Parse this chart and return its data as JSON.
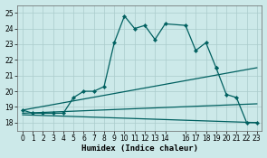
{
  "xlabel": "Humidex (Indice chaleur)",
  "xlim": [
    -0.5,
    23.5
  ],
  "ylim": [
    17.5,
    25.5
  ],
  "yticks": [
    18,
    19,
    20,
    21,
    22,
    23,
    24,
    25
  ],
  "xticks": [
    0,
    1,
    2,
    3,
    4,
    5,
    6,
    7,
    8,
    9,
    10,
    11,
    12,
    13,
    14,
    16,
    17,
    18,
    19,
    20,
    21,
    22,
    23
  ],
  "bg_color": "#cce9e9",
  "grid_color": "#aacccc",
  "line_color": "#006060",
  "lines": [
    {
      "x": [
        0,
        1,
        2,
        3,
        4,
        5,
        6,
        7,
        8,
        9,
        10,
        11,
        12,
        13,
        14,
        16,
        17,
        18,
        19
      ],
      "y": [
        18.8,
        18.6,
        18.6,
        18.6,
        18.6,
        19.6,
        20.0,
        20.0,
        20.3,
        23.1,
        24.8,
        24.0,
        24.2,
        23.3,
        24.3,
        24.2,
        22.6,
        23.1,
        21.5
      ],
      "marker": true
    },
    {
      "x": [
        19,
        20,
        21,
        22,
        23
      ],
      "y": [
        21.5,
        19.8,
        19.6,
        18.0,
        18.0
      ],
      "marker": true
    },
    {
      "x": [
        0,
        23
      ],
      "y": [
        18.8,
        21.5
      ],
      "marker": false
    },
    {
      "x": [
        0,
        23
      ],
      "y": [
        18.6,
        19.2
      ],
      "marker": false
    },
    {
      "x": [
        0,
        23
      ],
      "y": [
        18.5,
        18.0
      ],
      "marker": false
    }
  ]
}
